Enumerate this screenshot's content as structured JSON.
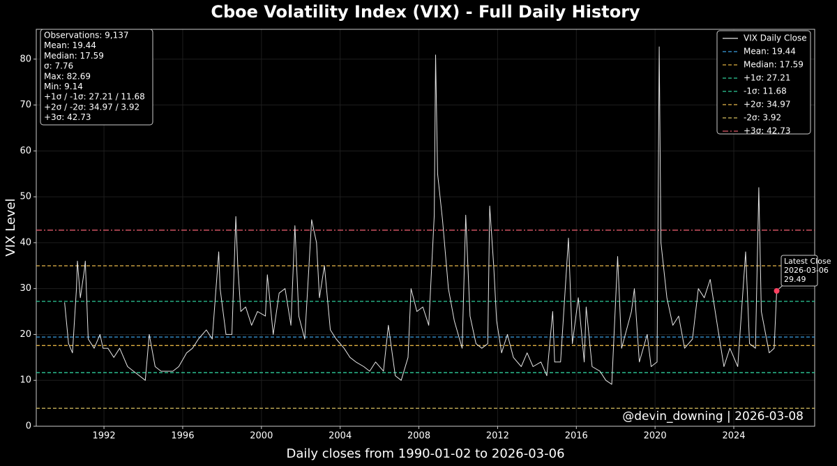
{
  "chart_data": {
    "type": "line",
    "title": "Cboe Volatility Index (VIX) - Full Daily History",
    "xlabel": "Daily closes from 1990-01-02 to 2026-03-06",
    "ylabel": "VIX Level",
    "xlim": [
      1988.56,
      2028.11
    ],
    "ylim": [
      0,
      86.5
    ],
    "xticks": [
      1992,
      1996,
      2000,
      2004,
      2008,
      2012,
      2016,
      2020,
      2024
    ],
    "yticks": [
      0,
      10,
      20,
      30,
      40,
      50,
      60,
      70,
      80
    ],
    "grid": true,
    "legend": "upper right",
    "series": [
      {
        "name": "VIX Daily Close",
        "color": "#e6e6e6",
        "x": [
          1990.0,
          1990.2,
          1990.4,
          1990.6,
          1990.65,
          1990.8,
          1991.0,
          1991.05,
          1991.2,
          1991.5,
          1991.8,
          1991.95,
          1992.2,
          1992.5,
          1992.8,
          1993.2,
          1993.5,
          1993.8,
          1994.1,
          1994.3,
          1994.6,
          1994.9,
          1995.2,
          1995.5,
          1995.8,
          1996.2,
          1996.5,
          1996.8,
          1997.2,
          1997.5,
          1997.83,
          1997.9,
          1998.2,
          1998.5,
          1998.7,
          1998.8,
          1998.95,
          1999.2,
          1999.5,
          1999.8,
          2000.2,
          2000.3,
          2000.6,
          2000.9,
          2001.2,
          2001.5,
          2001.7,
          2001.9,
          2002.2,
          2002.55,
          2002.8,
          2002.95,
          2003.2,
          2003.5,
          2003.8,
          2004.2,
          2004.5,
          2004.8,
          2005.2,
          2005.5,
          2005.8,
          2006.2,
          2006.45,
          2006.8,
          2007.1,
          2007.45,
          2007.6,
          2007.9,
          2008.2,
          2008.5,
          2008.78,
          2008.85,
          2008.95,
          2009.2,
          2009.5,
          2009.8,
          2010.2,
          2010.38,
          2010.6,
          2010.9,
          2011.2,
          2011.5,
          2011.6,
          2011.8,
          2011.95,
          2012.2,
          2012.5,
          2012.8,
          2013.2,
          2013.5,
          2013.8,
          2014.2,
          2014.5,
          2014.8,
          2014.9,
          2015.2,
          2015.6,
          2015.8,
          2016.1,
          2016.4,
          2016.5,
          2016.8,
          2017.2,
          2017.5,
          2017.8,
          2018.1,
          2018.3,
          2018.8,
          2018.95,
          2019.2,
          2019.6,
          2019.8,
          2020.1,
          2020.21,
          2020.3,
          2020.6,
          2020.9,
          2021.2,
          2021.5,
          2021.9,
          2022.2,
          2022.5,
          2022.8,
          2023.2,
          2023.5,
          2023.8,
          2024.2,
          2024.6,
          2024.8,
          2025.1,
          2025.27,
          2025.4,
          2025.8,
          2026.05,
          2026.18
        ],
        "values": [
          27,
          18,
          16,
          30,
          36,
          28,
          34,
          36,
          19,
          17,
          20,
          17,
          17,
          15,
          17,
          13,
          12,
          11,
          10,
          20,
          13,
          12,
          12,
          12,
          13,
          16,
          17,
          19,
          21,
          19,
          38,
          30,
          20,
          20,
          45.7,
          35,
          25,
          26,
          22,
          25,
          24,
          33,
          20,
          29,
          30,
          22,
          43.7,
          24,
          19,
          45,
          40,
          28,
          35,
          21,
          19,
          17,
          15,
          14,
          13,
          12,
          14,
          12,
          22,
          11,
          10,
          15,
          30,
          25,
          26,
          22,
          46,
          80.9,
          55,
          45,
          30,
          23,
          17,
          46,
          24,
          18,
          17,
          18,
          48,
          35,
          23,
          16,
          20,
          15,
          13,
          16,
          13,
          14,
          11,
          25,
          14,
          14,
          41,
          18,
          28,
          14,
          26,
          13,
          12,
          10,
          9.14,
          37,
          17,
          25,
          30,
          14,
          20,
          13,
          14,
          82.69,
          40,
          28,
          22,
          24,
          17,
          19,
          30,
          28,
          32,
          21,
          13,
          17,
          13,
          38,
          18,
          17,
          52,
          25,
          16,
          17,
          29.49
        ]
      }
    ],
    "reference_lines": [
      {
        "name": "Mean: 19.44",
        "value": 19.44,
        "color": "#3a9ee0",
        "dash": "5,3"
      },
      {
        "name": "Median: 17.59",
        "value": 17.59,
        "color": "#e0b040",
        "dash": "5,3"
      },
      {
        "name": "+1σ: 27.21",
        "value": 27.21,
        "color": "#2ecc9a",
        "dash": "5,3"
      },
      {
        "name": "-1σ: 11.68",
        "value": 11.68,
        "color": "#2ecc9a",
        "dash": "5,3"
      },
      {
        "name": "+2σ: 34.97",
        "value": 34.97,
        "color": "#e8b84a",
        "dash": "5,3"
      },
      {
        "name": "-2σ: 3.92",
        "value": 3.92,
        "color": "#d8c060",
        "dash": "5,3"
      },
      {
        "name": "+3σ: 42.73",
        "value": 42.73,
        "color": "#e05a6a",
        "dash": "8,3,2,3"
      }
    ],
    "stats_box": [
      "Observations: 9,137",
      "Mean: 19.44",
      "Median: 17.59",
      "σ: 7.76",
      "Max: 82.69",
      "Min: 9.14",
      "+1σ / -1σ: 27.21 / 11.68",
      "+2σ / -2σ: 34.97 / 3.92",
      "+3σ: 42.73"
    ],
    "annotation": {
      "lines": [
        "Latest Close",
        "2026-03-06",
        "29.49"
      ],
      "x": 2026.18,
      "value": 29.49,
      "color": "#ff4060"
    },
    "watermark": "@devin_downing | 2026-03-08"
  }
}
